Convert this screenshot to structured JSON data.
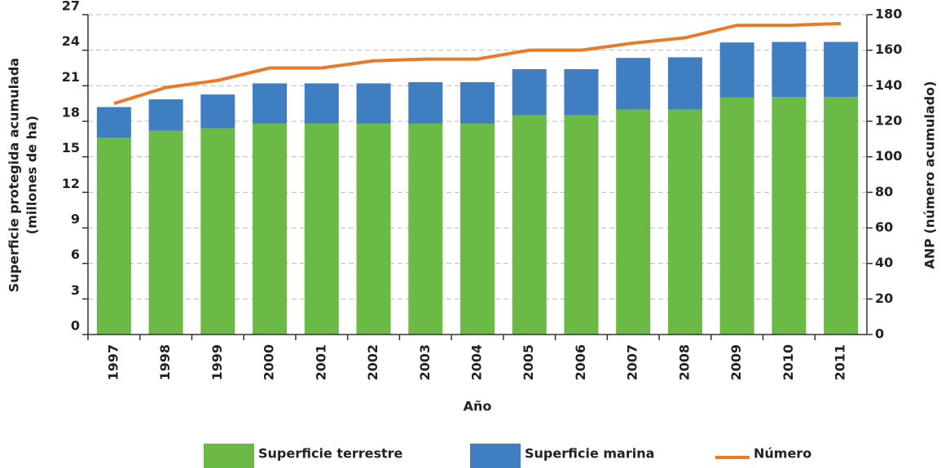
{
  "chart_data": {
    "type": "bar_line",
    "xlabel": "Año",
    "ylabel": [
      "Superficie protegida acumulada",
      "(millones de ha)"
    ],
    "y2label": "ANP (número acumulado)",
    "categories": [
      "1997",
      "1998",
      "1999",
      "2000",
      "2001",
      "2002",
      "2003",
      "2004",
      "2005",
      "2006",
      "2007",
      "2008",
      "2009",
      "2010",
      "2011"
    ],
    "series": [
      {
        "name": "Superficie terrestre",
        "color": "#6aba45",
        "type": "bar",
        "stack": true,
        "values": [
          16.6,
          17.2,
          17.4,
          17.8,
          17.8,
          17.8,
          17.8,
          17.8,
          18.5,
          18.5,
          19.0,
          19.0,
          20.0,
          20.05,
          20.05
        ]
      },
      {
        "name": "Superficie marina",
        "color": "#3f7fc1",
        "type": "bar",
        "stack": true,
        "values": [
          2.6,
          2.65,
          2.86,
          3.4,
          3.4,
          3.4,
          3.5,
          3.5,
          3.9,
          3.9,
          4.35,
          4.4,
          4.65,
          4.65,
          4.65
        ]
      },
      {
        "name": "Número",
        "color": "#e87b2a",
        "type": "line",
        "axis": "y2",
        "values": [
          130,
          139,
          143,
          150,
          150,
          154,
          155,
          155,
          160,
          160,
          164,
          167,
          174,
          174,
          175
        ]
      }
    ],
    "ylim": [
      0,
      27
    ],
    "yticks": [
      0,
      3,
      6,
      9,
      12,
      15,
      18,
      21,
      24,
      27
    ],
    "y2lim": [
      0,
      180
    ],
    "y2ticks": [
      0,
      20,
      40,
      60,
      80,
      100,
      120,
      140,
      160,
      180
    ],
    "grid": true,
    "legend": "bottom"
  }
}
